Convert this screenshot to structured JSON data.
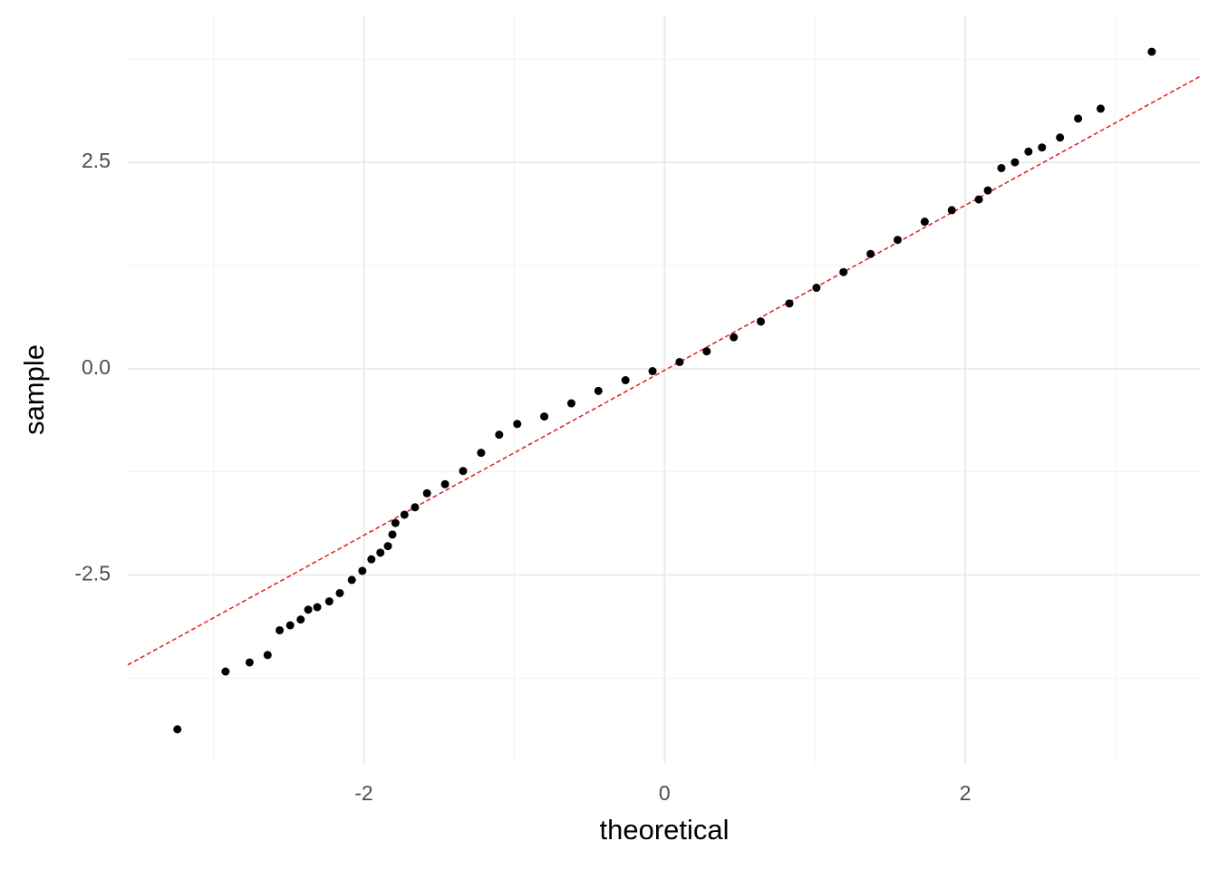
{
  "chart_data": {
    "type": "scatter",
    "x_label": "theoretical",
    "y_label": "sample",
    "x": [
      -3.24,
      -2.92,
      -2.76,
      -2.64,
      -2.56,
      -2.49,
      -2.42,
      -2.37,
      -2.31,
      -2.23,
      -2.16,
      -2.08,
      -2.01,
      -1.95,
      -1.89,
      -1.84,
      -1.81,
      -1.79,
      -1.73,
      -1.66,
      -1.58,
      -1.46,
      -1.34,
      -1.22,
      -1.1,
      -0.98,
      -0.8,
      -0.62,
      -0.44,
      -0.26,
      -0.08,
      0.1,
      0.28,
      0.46,
      0.64,
      0.83,
      1.01,
      1.19,
      1.37,
      1.55,
      1.73,
      1.91,
      2.09,
      2.15,
      2.24,
      2.33,
      2.42,
      2.51,
      2.63,
      2.75,
      2.9,
      3.24
    ],
    "values": [
      -4.37,
      -3.67,
      -3.56,
      -3.47,
      -3.17,
      -3.11,
      -3.04,
      -2.92,
      -2.89,
      -2.82,
      -2.72,
      -2.56,
      -2.45,
      -2.31,
      -2.23,
      -2.15,
      -2.01,
      -1.87,
      -1.77,
      -1.68,
      -1.51,
      -1.4,
      -1.24,
      -1.02,
      -0.8,
      -0.67,
      -0.58,
      -0.42,
      -0.27,
      -0.14,
      -0.03,
      0.08,
      0.21,
      0.38,
      0.57,
      0.79,
      0.98,
      1.17,
      1.39,
      1.56,
      1.78,
      1.92,
      2.05,
      2.16,
      2.43,
      2.5,
      2.63,
      2.68,
      2.8,
      3.03,
      3.15,
      3.84
    ],
    "color": "#000000",
    "ref_line": {
      "intercept": -0.02,
      "slope": 1.0,
      "color": "#e41a1c"
    },
    "xlim": [
      -3.57,
      3.56
    ],
    "xticks": [
      -2,
      0,
      2
    ],
    "ylim": [
      -4.79,
      4.28
    ],
    "yticks": [
      -2.5,
      {
        "value": 0,
        "label": "0.0"
      },
      2.5
    ],
    "x_minor_grid": [
      -3,
      -1,
      1,
      3
    ],
    "y_minor_grid": [
      -3.75,
      -1.25,
      1.25,
      3.75
    ],
    "grid": true
  }
}
